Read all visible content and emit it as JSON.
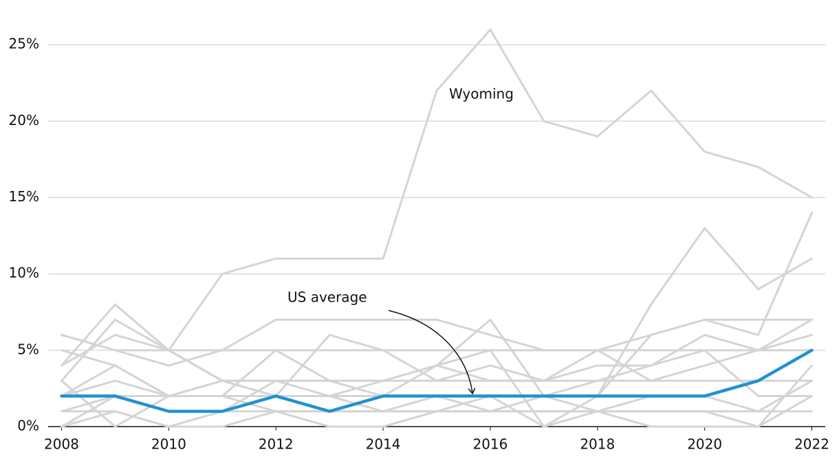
{
  "chart_data": {
    "type": "line",
    "x": [
      2008,
      2009,
      2010,
      2011,
      2012,
      2013,
      2014,
      2015,
      2016,
      2017,
      2018,
      2019,
      2020,
      2021,
      2022
    ],
    "xlim": [
      2007.75,
      2022.25
    ],
    "xticks": [
      2008,
      2010,
      2012,
      2014,
      2016,
      2018,
      2020,
      2022
    ],
    "ylim": [
      0,
      26
    ],
    "yticks": [
      {
        "value": 0,
        "label": "0%"
      },
      {
        "value": 5,
        "label": "5%"
      },
      {
        "value": 10,
        "label": "10%"
      },
      {
        "value": 15,
        "label": "15%"
      },
      {
        "value": 20,
        "label": "20%"
      },
      {
        "value": 25,
        "label": "25%"
      }
    ],
    "grid": true,
    "series": [
      {
        "color": "#d4d4d4",
        "values": [
          6,
          5,
          5,
          5,
          5,
          5,
          5,
          5,
          5,
          5,
          5,
          5,
          5,
          5,
          5
        ]
      },
      {
        "color": "#d4d4d4",
        "values": [
          4,
          8,
          5,
          3,
          3,
          3,
          3,
          3,
          3,
          3,
          3,
          3,
          3,
          3,
          3
        ]
      },
      {
        "color": "#d4d4d4",
        "values": [
          5,
          4,
          2,
          2,
          5,
          3,
          2,
          4,
          5,
          0,
          2,
          8,
          13,
          9,
          11
        ]
      },
      {
        "color": "#d4d4d4",
        "values": [
          2,
          3,
          2,
          2,
          2,
          2,
          2,
          2,
          2,
          2,
          2,
          6,
          7,
          6,
          14
        ]
      },
      {
        "color": "#d4d4d4",
        "values": [
          0,
          2,
          2,
          3,
          2,
          6,
          5,
          3,
          4,
          3,
          5,
          3,
          4,
          5,
          7
        ]
      },
      {
        "color": "#d4d4d4",
        "values": [
          1,
          1,
          0,
          1,
          3,
          2,
          1,
          1,
          1,
          1,
          1,
          2,
          2,
          1,
          3
        ]
      },
      {
        "color": "#d4d4d4",
        "values": [
          3,
          0,
          2,
          2,
          1,
          1,
          1,
          2,
          1,
          2,
          1,
          1,
          1,
          0,
          4
        ]
      },
      {
        "color": "#d4d4d4",
        "values": [
          1,
          2,
          1,
          1,
          1,
          1,
          1,
          1,
          1,
          1,
          1,
          1,
          1,
          1,
          1
        ]
      },
      {
        "color": "#d4d4d4",
        "values": [
          2,
          4,
          2,
          3,
          2,
          2,
          3,
          4,
          3,
          3,
          4,
          4,
          5,
          2,
          2
        ]
      },
      {
        "color": "#d4d4d4",
        "values": [
          0,
          1,
          0,
          0,
          1,
          0,
          0,
          1,
          2,
          0,
          1,
          0,
          0,
          0,
          2
        ]
      },
      {
        "color": "#d4d4d4",
        "values": [
          6,
          5,
          4,
          5,
          7,
          7,
          7,
          7,
          6,
          5,
          5,
          6,
          7,
          7,
          7
        ]
      },
      {
        "color": "#d4d4d4",
        "values": [
          3,
          7,
          5,
          3,
          3,
          3,
          3,
          4,
          7,
          2,
          3,
          4,
          6,
          5,
          6
        ]
      },
      {
        "name": "Wyoming",
        "color": "#d4d4d4",
        "values": [
          4,
          6,
          5,
          10,
          11,
          11,
          11,
          22,
          26,
          20,
          19,
          22,
          18,
          17,
          15
        ]
      },
      {
        "name": "US average",
        "color": "#2191d2",
        "values": [
          2,
          2,
          1,
          1,
          2,
          1,
          2,
          2,
          2,
          2,
          2,
          2,
          2,
          3,
          5
        ]
      }
    ]
  }
}
